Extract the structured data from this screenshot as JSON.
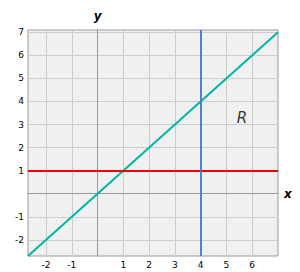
{
  "chart_data": {
    "type": "line",
    "xlabel": "x",
    "ylabel": "y",
    "xlim": [
      -2.7,
      7.0
    ],
    "ylim": [
      -2.7,
      7.1
    ],
    "xticks": [
      -2,
      -1,
      1,
      2,
      3,
      4,
      5,
      6
    ],
    "yticks": [
      -2,
      -1,
      1,
      2,
      3,
      4,
      5,
      6,
      7
    ],
    "grid": true,
    "series": [
      {
        "color": "#00b5a5",
        "x": [
          -2.7,
          7.0
        ],
        "values": [
          -2.7,
          7.0
        ]
      }
    ],
    "hlines": [
      {
        "y": 1,
        "color": "#ee0000"
      }
    ],
    "vlines": [
      {
        "x": 4,
        "color": "#4477cc"
      }
    ],
    "annotations": [
      {
        "text": "R",
        "x": 5.6,
        "y": 3.3
      }
    ]
  }
}
